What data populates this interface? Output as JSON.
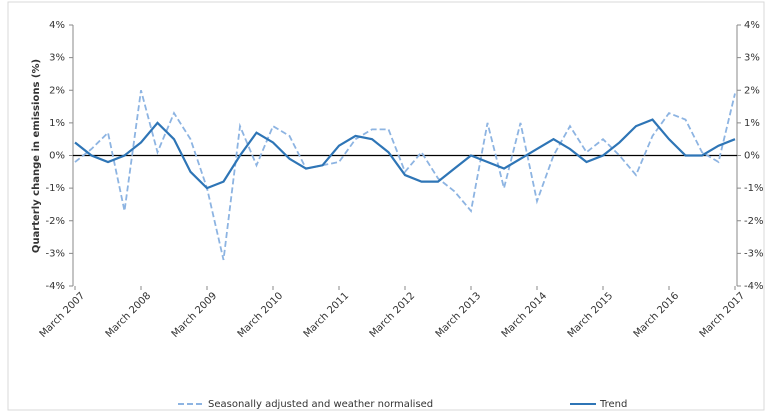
{
  "chart_data": {
    "type": "line",
    "y_label": "Quarterly change in emissions (%)",
    "categories": [
      "March 2007",
      null,
      null,
      null,
      "March 2008",
      null,
      null,
      null,
      "March 2009",
      null,
      null,
      null,
      "March 2010",
      null,
      null,
      null,
      "March 2011",
      null,
      null,
      null,
      "March 2012",
      null,
      null,
      null,
      "March 2013",
      null,
      null,
      null,
      "March 2014",
      null,
      null,
      null,
      "March 2015",
      null,
      null,
      null,
      "March 2016",
      null,
      null,
      null,
      "March 2017"
    ],
    "series": [
      {
        "name": "Seasonally adjusted and weather normalised",
        "color": "#8db4e2",
        "dashed": true,
        "values": [
          -0.2,
          0.2,
          0.7,
          -1.7,
          2.0,
          0.1,
          1.3,
          0.5,
          -1.0,
          -3.2,
          0.9,
          -0.3,
          0.9,
          0.6,
          -0.4,
          -0.3,
          -0.2,
          0.5,
          0.8,
          0.8,
          -0.5,
          0.1,
          -0.7,
          -1.1,
          -1.7,
          1.0,
          -1.0,
          1.0,
          -1.4,
          0.0,
          0.9,
          0.1,
          0.5,
          0.0,
          -0.6,
          0.6,
          1.3,
          1.1,
          0.1,
          -0.2,
          1.9
        ]
      },
      {
        "name": "Trend",
        "color": "#2e75b6",
        "dashed": false,
        "values": [
          0.4,
          0.0,
          -0.2,
          0.0,
          0.4,
          1.0,
          0.5,
          -0.5,
          -1.0,
          -0.8,
          0.0,
          0.7,
          0.4,
          -0.1,
          -0.4,
          -0.3,
          0.3,
          0.6,
          0.5,
          0.1,
          -0.6,
          -0.8,
          -0.8,
          -0.4,
          0.0,
          -0.2,
          -0.4,
          -0.1,
          0.2,
          0.5,
          0.2,
          -0.2,
          0.0,
          0.4,
          0.9,
          1.1,
          0.5,
          0.0,
          0.0,
          0.3,
          0.5
        ]
      }
    ],
    "ylim": [
      -4,
      4
    ],
    "yticks": [
      {
        "value": -4,
        "label": "-4%"
      },
      {
        "value": -3,
        "label": "-3%"
      },
      {
        "value": -2,
        "label": "-2%"
      },
      {
        "value": -1,
        "label": "-1%"
      },
      {
        "value": 0,
        "label": "0%"
      },
      {
        "value": 1,
        "label": "1%"
      },
      {
        "value": 2,
        "label": "2%"
      },
      {
        "value": 3,
        "label": "3%"
      },
      {
        "value": 4,
        "label": "4%"
      }
    ],
    "y2lim": [
      -4,
      4
    ],
    "y2ticks": [
      {
        "value": -4,
        "label": "-4%"
      },
      {
        "value": -3,
        "label": "-3%"
      },
      {
        "value": -2,
        "label": "-2%"
      },
      {
        "value": -1,
        "label": "-1%"
      },
      {
        "value": 0,
        "label": "0%"
      },
      {
        "value": 1,
        "label": "1%"
      },
      {
        "value": 2,
        "label": "2%"
      },
      {
        "value": 3,
        "label": "3%"
      },
      {
        "value": 4,
        "label": "4%"
      }
    ],
    "legend": "bottom"
  }
}
